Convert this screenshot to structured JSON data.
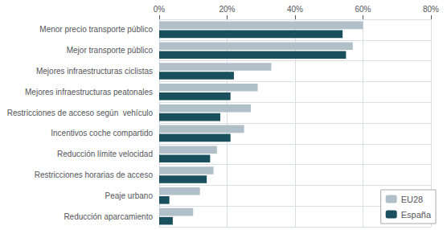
{
  "chart_data": {
    "type": "bar",
    "orientation": "horizontal",
    "categories": [
      "Menor precio transporte público",
      "Mejor transporte público",
      "Mejores infraestructuras ciclistas",
      "Mejores infraestructuras peatonales",
      "Restricciones de acceso según  vehículo",
      "Incentivos coche compartido",
      "Reducción límite velocidad",
      "Restricciones horarias de acceso",
      "Peaje urbano",
      "Reducción aparcamiento"
    ],
    "series": [
      {
        "name": "EU28",
        "color": "#b0bfc8",
        "values": [
          60,
          57,
          33,
          29,
          27,
          25,
          17,
          16,
          12,
          10
        ]
      },
      {
        "name": "España",
        "color": "#1a4f5e",
        "values": [
          54,
          55,
          22,
          21,
          18,
          21,
          15,
          14,
          3,
          4
        ]
      }
    ],
    "xlim": [
      0,
      80
    ],
    "xticks": [
      {
        "value": 0,
        "label": "0%"
      },
      {
        "value": 20,
        "label": "20%"
      },
      {
        "value": 40,
        "label": "40%"
      },
      {
        "value": 60,
        "label": "60%"
      },
      {
        "value": 80,
        "label": "80%"
      }
    ],
    "grid": true,
    "legend": "lower right"
  }
}
